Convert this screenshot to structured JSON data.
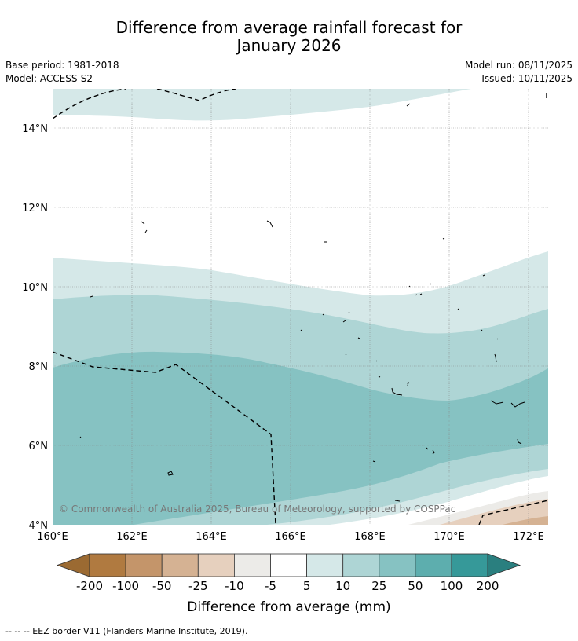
{
  "title": {
    "line1": "Difference from average rainfall forecast for",
    "line2": "January 2026"
  },
  "meta": {
    "base_period": "Base period: 1981-2018",
    "model": "Model: ACCESS-S2",
    "model_run": "Model run: 08/11/2025",
    "issued": "Issued: 10/11/2025"
  },
  "map": {
    "lon_labels": [
      "160°E",
      "162°E",
      "164°E",
      "166°E",
      "168°E",
      "170°E",
      "172°E"
    ],
    "lat_labels": [
      "14°N",
      "12°N",
      "10°N",
      "8°N",
      "6°N",
      "4°N"
    ],
    "copyright": "© Commonwealth of Australia 2025, Bureau of Meteorology, supported by COSPPac"
  },
  "colorbar": {
    "label": "Difference from average (mm)",
    "tick_labels": [
      "-200",
      "-100",
      "-50",
      "-25",
      "-10",
      "-5",
      "5",
      "10",
      "25",
      "50",
      "100",
      "200"
    ],
    "colors": [
      "#9b6a32",
      "#b07a40",
      "#c4956a",
      "#d5b293",
      "#e6d0be",
      "#ecebe8",
      "#ffffff",
      "#d5e8e8",
      "#aed5d5",
      "#86c2c2",
      "#5daeae",
      "#369999",
      "#2a7f7f"
    ]
  },
  "footnote": "--  --  -- EEZ border V11 (Flanders Marine Institute, 2019)."
}
